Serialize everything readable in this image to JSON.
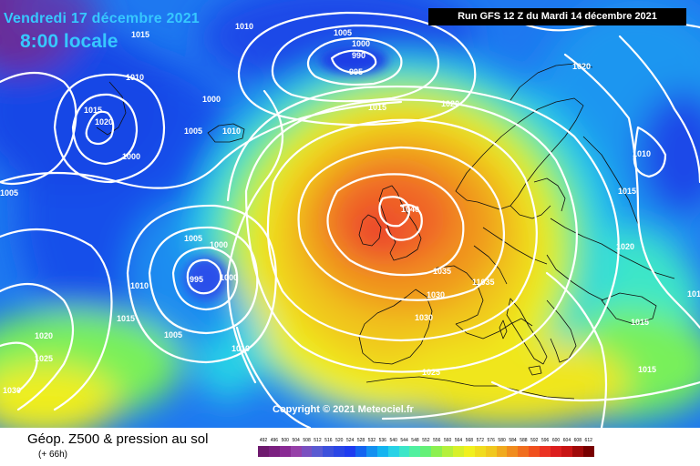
{
  "header": {
    "valid_date": "Vendredi 17 décembre 2021",
    "valid_time": "8:00 locale",
    "run_info": "Run GFS 12 Z du Mardi 14 décembre 2021"
  },
  "map": {
    "copyright": "Copyright © 2021 Meteociel.fr",
    "pressure_labels": [
      {
        "value": "1010",
        "id": "p1"
      },
      {
        "value": "1015",
        "id": "p2"
      },
      {
        "value": "1005",
        "id": "p3"
      },
      {
        "value": "1000",
        "id": "p4"
      },
      {
        "value": "990",
        "id": "p5"
      },
      {
        "value": "995",
        "id": "p6"
      },
      {
        "value": "1020",
        "id": "p7"
      },
      {
        "value": "1010",
        "id": "p8"
      },
      {
        "value": "1015",
        "id": "p9"
      },
      {
        "value": "1020",
        "id": "p10"
      },
      {
        "value": "1000",
        "id": "p11"
      },
      {
        "value": "1005",
        "id": "p12"
      },
      {
        "value": "1010",
        "id": "p13"
      },
      {
        "value": "1015",
        "id": "p14"
      },
      {
        "value": "1020",
        "id": "p15"
      },
      {
        "value": "1000",
        "id": "p16"
      },
      {
        "value": "1010",
        "id": "p17"
      },
      {
        "value": "1005",
        "id": "p18"
      },
      {
        "value": "1040",
        "id": "p19"
      },
      {
        "value": "1015",
        "id": "p20"
      },
      {
        "value": "1005",
        "id": "p21"
      },
      {
        "value": "1000",
        "id": "p22"
      },
      {
        "value": "995",
        "id": "p23"
      },
      {
        "value": "1000",
        "id": "p24"
      },
      {
        "value": "1010",
        "id": "p25"
      },
      {
        "value": "1020",
        "id": "p26"
      },
      {
        "value": "1035",
        "id": "p27"
      },
      {
        "value": "11035",
        "id": "p28"
      },
      {
        "value": "1030",
        "id": "p29"
      },
      {
        "value": "1015",
        "id": "p30"
      },
      {
        "value": "1005",
        "id": "p31"
      },
      {
        "value": "1030",
        "id": "p32"
      },
      {
        "value": "1020",
        "id": "p33"
      },
      {
        "value": "1025",
        "id": "p34"
      },
      {
        "value": "1010",
        "id": "p35"
      },
      {
        "value": "1015",
        "id": "p36"
      },
      {
        "value": "1025",
        "id": "p37"
      },
      {
        "value": "1030",
        "id": "p38"
      },
      {
        "value": "1015",
        "id": "p39"
      },
      {
        "value": "1010",
        "id": "p40"
      }
    ]
  },
  "legend": {
    "title": "Géop. Z500 & pression au sol",
    "subtitle": "(+ 66h)",
    "scale": [
      {
        "value": "492",
        "color": "#6e1a6e"
      },
      {
        "value": "496",
        "color": "#7c2080"
      },
      {
        "value": "500",
        "color": "#8a2a94"
      },
      {
        "value": "504",
        "color": "#9640a8"
      },
      {
        "value": "508",
        "color": "#7a50c0"
      },
      {
        "value": "512",
        "color": "#5a5ad2"
      },
      {
        "value": "516",
        "color": "#3c50dc"
      },
      {
        "value": "520",
        "color": "#2a46e6"
      },
      {
        "value": "524",
        "color": "#1e3cf0"
      },
      {
        "value": "528",
        "color": "#1464f0"
      },
      {
        "value": "532",
        "color": "#1490f0"
      },
      {
        "value": "536",
        "color": "#14b4f0"
      },
      {
        "value": "540",
        "color": "#28d2e6"
      },
      {
        "value": "544",
        "color": "#3ce6c8"
      },
      {
        "value": "548",
        "color": "#50f0a0"
      },
      {
        "value": "552",
        "color": "#64f078"
      },
      {
        "value": "556",
        "color": "#8cf050"
      },
      {
        "value": "560",
        "color": "#b4f03c"
      },
      {
        "value": "564",
        "color": "#d7f02a"
      },
      {
        "value": "568",
        "color": "#f0f01e"
      },
      {
        "value": "572",
        "color": "#f0dc1e"
      },
      {
        "value": "576",
        "color": "#f0c81e"
      },
      {
        "value": "580",
        "color": "#f0aa1e"
      },
      {
        "value": "584",
        "color": "#f08c1e"
      },
      {
        "value": "588",
        "color": "#f06e1e"
      },
      {
        "value": "592",
        "color": "#f0501e"
      },
      {
        "value": "596",
        "color": "#eb3223"
      },
      {
        "value": "600",
        "color": "#dc1e1e"
      },
      {
        "value": "604",
        "color": "#c81414"
      },
      {
        "value": "608",
        "color": "#a00a0a"
      },
      {
        "value": "612",
        "color": "#780000"
      }
    ]
  }
}
